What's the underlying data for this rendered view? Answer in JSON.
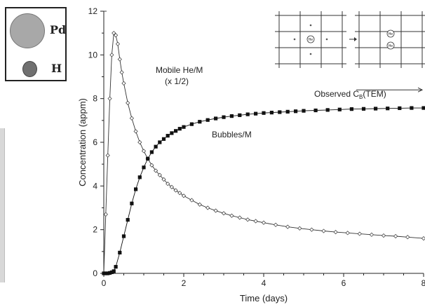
{
  "legend": {
    "pd_label": "Pd",
    "h_label": "H",
    "pd_color": "#a8a8a8",
    "h_color": "#707070"
  },
  "chart_data": {
    "type": "line",
    "title": "",
    "xlabel": "Time (days)",
    "ylabel": "Concentration (appm)",
    "xlim": [
      0,
      8
    ],
    "ylim": [
      0,
      12
    ],
    "xticks": [
      0,
      2,
      4,
      6,
      8
    ],
    "yticks": [
      0,
      2,
      4,
      6,
      8,
      10,
      12
    ],
    "xtick_labels": [
      "0",
      "2",
      "4",
      "6",
      "8"
    ],
    "ytick_labels": [
      "0",
      "2",
      "4",
      "6",
      "8",
      "10",
      "12"
    ],
    "grid": false,
    "series": [
      {
        "name": "Mobile He/M",
        "marker": "open-diamond",
        "color": "#333333",
        "x": [
          0.0,
          0.05,
          0.1,
          0.15,
          0.2,
          0.25,
          0.3,
          0.35,
          0.4,
          0.45,
          0.5,
          0.6,
          0.7,
          0.8,
          0.9,
          1.0,
          1.1,
          1.2,
          1.3,
          1.4,
          1.5,
          1.6,
          1.7,
          1.8,
          1.9,
          2.0,
          2.2,
          2.4,
          2.6,
          2.8,
          3.0,
          3.2,
          3.4,
          3.6,
          3.8,
          4.0,
          4.3,
          4.6,
          4.9,
          5.2,
          5.5,
          5.8,
          6.1,
          6.4,
          6.7,
          7.0,
          7.3,
          7.6,
          8.0
        ],
        "y": [
          0.0,
          2.7,
          5.4,
          8.0,
          10.0,
          11.0,
          10.9,
          10.5,
          9.8,
          9.2,
          8.7,
          7.8,
          7.1,
          6.5,
          6.0,
          5.6,
          5.25,
          4.95,
          4.7,
          4.5,
          4.3,
          4.1,
          3.95,
          3.8,
          3.68,
          3.55,
          3.35,
          3.15,
          3.0,
          2.87,
          2.75,
          2.64,
          2.55,
          2.46,
          2.39,
          2.32,
          2.22,
          2.13,
          2.06,
          2.0,
          1.94,
          1.89,
          1.85,
          1.81,
          1.77,
          1.73,
          1.7,
          1.66,
          1.6
        ]
      },
      {
        "name": "Bubbles/M",
        "marker": "filled-square",
        "color": "#111111",
        "x": [
          0.0,
          0.05,
          0.1,
          0.15,
          0.2,
          0.25,
          0.3,
          0.4,
          0.5,
          0.6,
          0.7,
          0.8,
          0.9,
          1.0,
          1.1,
          1.2,
          1.3,
          1.4,
          1.5,
          1.6,
          1.7,
          1.8,
          1.9,
          2.0,
          2.2,
          2.4,
          2.6,
          2.8,
          3.0,
          3.2,
          3.4,
          3.6,
          3.8,
          4.0,
          4.2,
          4.4,
          4.6,
          4.8,
          5.0,
          5.3,
          5.6,
          5.9,
          6.2,
          6.5,
          6.8,
          7.1,
          7.4,
          7.7,
          8.0
        ],
        "y": [
          0.0,
          0.0,
          0.0,
          0.02,
          0.05,
          0.1,
          0.3,
          0.95,
          1.7,
          2.45,
          3.2,
          3.85,
          4.4,
          4.85,
          5.25,
          5.55,
          5.8,
          6.0,
          6.15,
          6.3,
          6.42,
          6.52,
          6.62,
          6.7,
          6.83,
          6.94,
          7.02,
          7.09,
          7.15,
          7.2,
          7.24,
          7.28,
          7.31,
          7.34,
          7.36,
          7.38,
          7.4,
          7.42,
          7.44,
          7.46,
          7.48,
          7.5,
          7.52,
          7.53,
          7.54,
          7.55,
          7.56,
          7.57,
          7.57
        ]
      }
    ],
    "annotations": {
      "mobile_line1": "Mobile He/M",
      "mobile_line2": "(x 1/2)",
      "bubbles": "Bubbles/M",
      "observed_prefix": "Observed C",
      "observed_sub": "B",
      "observed_suffix": "(TEM)",
      "observed_value": 8.4
    },
    "inset": {
      "type": "lattice-diagram",
      "left_label": "He",
      "right_labels": [
        "He",
        "He"
      ],
      "arrow": "right"
    }
  }
}
